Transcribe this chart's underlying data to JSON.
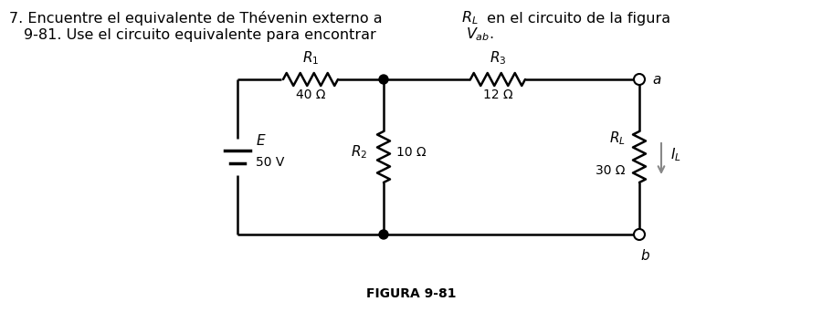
{
  "bg_color": "#ffffff",
  "line_color": "#000000",
  "R1_val": "40 Ω",
  "R2_val": "10 Ω",
  "R3_val": "12 Ω",
  "RL_val": "30 Ω",
  "E_val": "50 V",
  "fig_label": "FIGURA 9-81",
  "a_label": "a",
  "b_label": "b"
}
